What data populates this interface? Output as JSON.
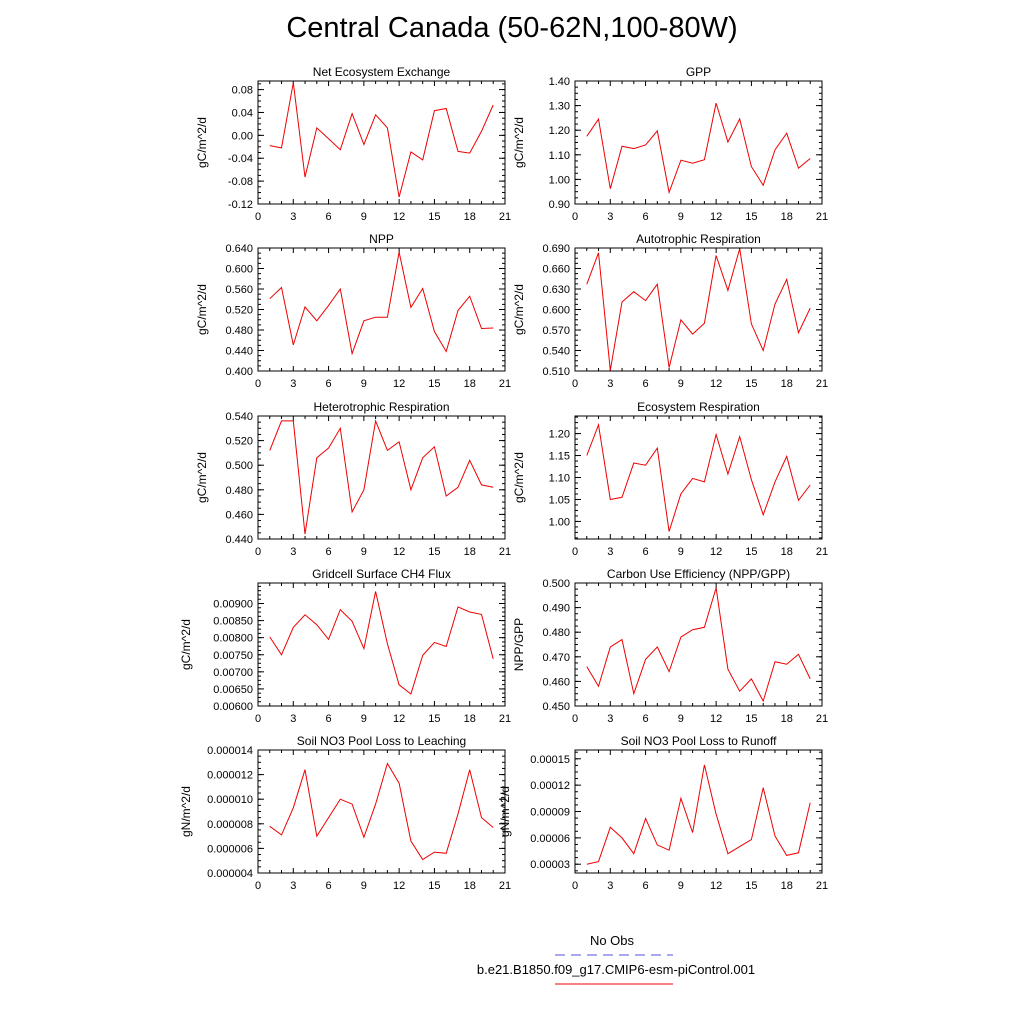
{
  "title": "Central Canada (50-62N,100-80W)",
  "legend": {
    "obs_label": "No Obs",
    "obs_color": "#5555dd",
    "case_label": "b.e21.B1850.f09_g17.CMIP6-esm-piControl.001",
    "case_color": "#ee0000"
  },
  "chart_data": [
    {
      "type": "line",
      "title": "Net Ecosystem Exchange",
      "ylabel": "gC/m^2/d",
      "xlim": [
        0,
        21
      ],
      "ylim": [
        -0.12,
        0.095
      ],
      "xticks": [
        "0",
        "3",
        "6",
        "9",
        "12",
        "15",
        "18",
        "21"
      ],
      "yticks": [
        -0.12,
        -0.08,
        -0.04,
        0.0,
        0.04,
        0.08
      ],
      "yticklabels": [
        "-0.12",
        "-0.08",
        "-0.04",
        "0.00",
        "0.04",
        "0.08"
      ],
      "x": [
        1,
        2,
        3,
        4,
        5,
        6,
        7,
        8,
        9,
        10,
        11,
        12,
        13,
        14,
        15,
        16,
        17,
        18,
        19,
        20
      ],
      "series": [
        {
          "values": [
            -0.018,
            -0.022,
            0.092,
            -0.073,
            0.013,
            -0.006,
            -0.025,
            0.038,
            -0.016,
            0.036,
            0.013,
            -0.108,
            -0.029,
            -0.043,
            0.043,
            0.047,
            -0.028,
            -0.031,
            0.007,
            0.053
          ]
        }
      ]
    },
    {
      "type": "line",
      "title": "GPP",
      "ylabel": "gC/m^2/d",
      "xlim": [
        0,
        21
      ],
      "ylim": [
        0.9,
        1.4
      ],
      "xticks": [
        "0",
        "3",
        "6",
        "9",
        "12",
        "15",
        "18",
        "21"
      ],
      "yticks": [
        0.9,
        1.0,
        1.1,
        1.2,
        1.3,
        1.4
      ],
      "yticklabels": [
        "0.90",
        "1.00",
        "1.10",
        "1.20",
        "1.30",
        "1.40"
      ],
      "x": [
        1,
        2,
        3,
        4,
        5,
        6,
        7,
        8,
        9,
        10,
        11,
        12,
        13,
        14,
        15,
        16,
        17,
        18,
        19,
        20
      ],
      "series": [
        {
          "values": [
            1.175,
            1.245,
            0.962,
            1.135,
            1.125,
            1.14,
            1.197,
            0.947,
            1.078,
            1.066,
            1.08,
            1.31,
            1.152,
            1.246,
            1.052,
            0.976,
            1.12,
            1.188,
            1.046,
            1.085
          ]
        }
      ]
    },
    {
      "type": "line",
      "title": "NPP",
      "ylabel": "gC/m^2/d",
      "xlim": [
        0,
        21
      ],
      "ylim": [
        0.4,
        0.64
      ],
      "xticks": [
        "0",
        "3",
        "6",
        "9",
        "12",
        "15",
        "18",
        "21"
      ],
      "yticks": [
        0.4,
        0.44,
        0.48,
        0.52,
        0.56,
        0.6,
        0.64
      ],
      "yticklabels": [
        "0.400",
        "0.440",
        "0.480",
        "0.520",
        "0.560",
        "0.600",
        "0.640"
      ],
      "x": [
        1,
        2,
        3,
        4,
        5,
        6,
        7,
        8,
        9,
        10,
        11,
        12,
        13,
        14,
        15,
        16,
        17,
        18,
        19,
        20
      ],
      "series": [
        {
          "values": [
            0.541,
            0.563,
            0.451,
            0.525,
            0.498,
            0.528,
            0.56,
            0.434,
            0.498,
            0.505,
            0.505,
            0.632,
            0.524,
            0.561,
            0.477,
            0.438,
            0.518,
            0.546,
            0.483,
            0.484
          ]
        }
      ]
    },
    {
      "type": "line",
      "title": "Autotrophic Respiration",
      "ylabel": "gC/m^2/d",
      "xlim": [
        0,
        21
      ],
      "ylim": [
        0.51,
        0.69
      ],
      "xticks": [
        "0",
        "3",
        "6",
        "9",
        "12",
        "15",
        "18",
        "21"
      ],
      "yticks": [
        0.51,
        0.54,
        0.57,
        0.6,
        0.63,
        0.66,
        0.69
      ],
      "yticklabels": [
        "0.510",
        "0.540",
        "0.570",
        "0.600",
        "0.630",
        "0.660",
        "0.690"
      ],
      "x": [
        1,
        2,
        3,
        4,
        5,
        6,
        7,
        8,
        9,
        10,
        11,
        12,
        13,
        14,
        15,
        16,
        17,
        18,
        19,
        20
      ],
      "series": [
        {
          "values": [
            0.637,
            0.683,
            0.511,
            0.611,
            0.626,
            0.613,
            0.637,
            0.515,
            0.585,
            0.564,
            0.58,
            0.679,
            0.628,
            0.689,
            0.579,
            0.54,
            0.608,
            0.644,
            0.566,
            0.602
          ]
        }
      ]
    },
    {
      "type": "line",
      "title": "Heterotrophic Respiration",
      "ylabel": "gC/m^2/d",
      "xlim": [
        0,
        21
      ],
      "ylim": [
        0.44,
        0.54
      ],
      "xticks": [
        "0",
        "3",
        "6",
        "9",
        "12",
        "15",
        "18",
        "21"
      ],
      "yticks": [
        0.44,
        0.46,
        0.48,
        0.5,
        0.52,
        0.54
      ],
      "yticklabels": [
        "0.440",
        "0.460",
        "0.480",
        "0.500",
        "0.520",
        "0.540"
      ],
      "x": [
        1,
        2,
        3,
        4,
        5,
        6,
        7,
        8,
        9,
        10,
        11,
        12,
        13,
        14,
        15,
        16,
        17,
        18,
        19,
        20
      ],
      "series": [
        {
          "values": [
            0.512,
            0.536,
            0.536,
            0.444,
            0.506,
            0.514,
            0.53,
            0.462,
            0.48,
            0.536,
            0.512,
            0.519,
            0.48,
            0.506,
            0.515,
            0.475,
            0.482,
            0.504,
            0.484,
            0.482
          ]
        }
      ]
    },
    {
      "type": "line",
      "title": "Ecosystem Respiration",
      "ylabel": "gC/m^2/d",
      "xlim": [
        0,
        21
      ],
      "ylim": [
        0.96,
        1.24
      ],
      "xticks": [
        "0",
        "3",
        "6",
        "9",
        "12",
        "15",
        "18",
        "21"
      ],
      "yticks": [
        1.0,
        1.05,
        1.1,
        1.15,
        1.2
      ],
      "yticklabels": [
        "1.00",
        "1.05",
        "1.10",
        "1.15",
        "1.20"
      ],
      "x": [
        1,
        2,
        3,
        4,
        5,
        6,
        7,
        8,
        9,
        10,
        11,
        12,
        13,
        14,
        15,
        16,
        17,
        18,
        19,
        20
      ],
      "series": [
        {
          "values": [
            1.15,
            1.22,
            1.05,
            1.055,
            1.133,
            1.128,
            1.167,
            0.977,
            1.063,
            1.098,
            1.09,
            1.198,
            1.108,
            1.193,
            1.095,
            1.015,
            1.09,
            1.148,
            1.048,
            1.083
          ]
        }
      ]
    },
    {
      "type": "line",
      "title": "Gridcell Surface CH4 Flux",
      "ylabel": "gC/m^2/d",
      "xlim": [
        0,
        21
      ],
      "ylim": [
        0.006,
        0.0096
      ],
      "xticks": [
        "0",
        "3",
        "6",
        "9",
        "12",
        "15",
        "18",
        "21"
      ],
      "yticks": [
        0.006,
        0.0065,
        0.007,
        0.0075,
        0.008,
        0.0085,
        0.009
      ],
      "yticklabels": [
        "0.00600",
        "0.00650",
        "0.00700",
        "0.00750",
        "0.00800",
        "0.00850",
        "0.00900"
      ],
      "x": [
        1,
        2,
        3,
        4,
        5,
        6,
        7,
        8,
        9,
        10,
        11,
        12,
        13,
        14,
        15,
        16,
        17,
        18,
        19,
        20
      ],
      "series": [
        {
          "values": [
            0.00802,
            0.0075,
            0.0083,
            0.00867,
            0.00838,
            0.00795,
            0.00882,
            0.00848,
            0.00768,
            0.00935,
            0.00782,
            0.00662,
            0.00635,
            0.00748,
            0.00786,
            0.00774,
            0.0089,
            0.00875,
            0.00868,
            0.00738
          ]
        }
      ]
    },
    {
      "type": "line",
      "title": "Carbon Use Efficiency (NPP/GPP)",
      "ylabel": "NPP/GPP",
      "xlim": [
        0,
        21
      ],
      "ylim": [
        0.45,
        0.5
      ],
      "xticks": [
        "0",
        "3",
        "6",
        "9",
        "12",
        "15",
        "18",
        "21"
      ],
      "yticks": [
        0.45,
        0.46,
        0.47,
        0.48,
        0.49,
        0.5
      ],
      "yticklabels": [
        "0.450",
        "0.460",
        "0.470",
        "0.480",
        "0.490",
        "0.500"
      ],
      "x": [
        1,
        2,
        3,
        4,
        5,
        6,
        7,
        8,
        9,
        10,
        11,
        12,
        13,
        14,
        15,
        16,
        17,
        18,
        19,
        20
      ],
      "series": [
        {
          "values": [
            0.466,
            0.458,
            0.474,
            0.477,
            0.455,
            0.469,
            0.474,
            0.464,
            0.478,
            0.481,
            0.482,
            0.498,
            0.465,
            0.456,
            0.461,
            0.452,
            0.468,
            0.467,
            0.471,
            0.461
          ]
        }
      ]
    },
    {
      "type": "line",
      "title": "Soil NO3 Pool Loss to Leaching",
      "ylabel": "gN/m^2/d",
      "xlim": [
        0,
        21
      ],
      "ylim": [
        4e-06,
        1.4e-05
      ],
      "xticks": [
        "0",
        "3",
        "6",
        "9",
        "12",
        "15",
        "18",
        "21"
      ],
      "yticks": [
        4e-06,
        6e-06,
        8e-06,
        1e-05,
        1.2e-05,
        1.4e-05
      ],
      "yticklabels": [
        "0.000004",
        "0.000006",
        "0.000008",
        "0.000010",
        "0.000012",
        "0.000014"
      ],
      "x": [
        1,
        2,
        3,
        4,
        5,
        6,
        7,
        8,
        9,
        10,
        11,
        12,
        13,
        14,
        15,
        16,
        17,
        18,
        19,
        20
      ],
      "series": [
        {
          "values": [
            7.8e-06,
            7.1e-06,
            9.3e-06,
            1.24e-05,
            7e-06,
            8.5e-06,
            1e-05,
            9.6e-06,
            6.9e-06,
            9.6e-06,
            1.29e-05,
            1.13e-05,
            6.6e-06,
            5.1e-06,
            5.7e-06,
            5.6e-06,
            8.8e-06,
            1.24e-05,
            8.5e-06,
            7.7e-06
          ]
        }
      ]
    },
    {
      "type": "line",
      "title": "Soil NO3 Pool Loss to Runoff",
      "ylabel": "gN/m^2/d",
      "xlim": [
        0,
        21
      ],
      "ylim": [
        2e-05,
        0.00016
      ],
      "xticks": [
        "0",
        "3",
        "6",
        "9",
        "12",
        "15",
        "18",
        "21"
      ],
      "yticks": [
        3e-05,
        6e-05,
        9e-05,
        0.00012,
        0.00015
      ],
      "yticklabels": [
        "0.00003",
        "0.00006",
        "0.00009",
        "0.00012",
        "0.00015"
      ],
      "x": [
        1,
        2,
        3,
        4,
        5,
        6,
        7,
        8,
        9,
        10,
        11,
        12,
        13,
        14,
        15,
        16,
        17,
        18,
        19,
        20
      ],
      "series": [
        {
          "values": [
            3e-05,
            3.3e-05,
            7.2e-05,
            6e-05,
            4.2e-05,
            8.2e-05,
            5.2e-05,
            4.6e-05,
            0.000105,
            6.6e-05,
            0.000143,
            8.7e-05,
            4.2e-05,
            5e-05,
            5.8e-05,
            0.000117,
            6.2e-05,
            4e-05,
            4.3e-05,
            0.0001
          ]
        }
      ]
    }
  ]
}
